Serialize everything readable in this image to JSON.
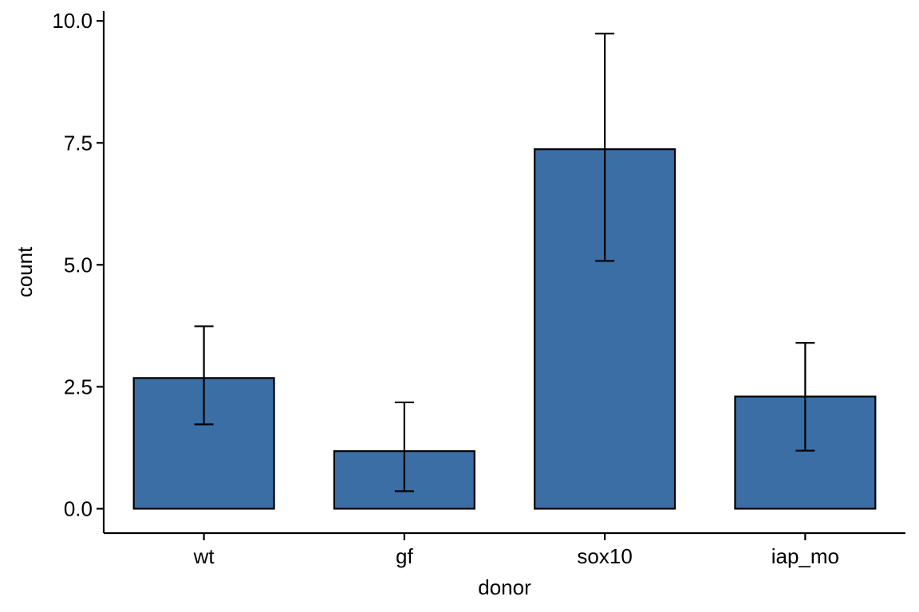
{
  "chart_data": {
    "type": "bar",
    "categories": [
      "wt",
      "gf",
      "sox10",
      "iap_mo"
    ],
    "values": [
      2.68,
      1.18,
      7.37,
      2.3
    ],
    "error_low": [
      1.73,
      0.36,
      5.08,
      1.19
    ],
    "error_high": [
      3.74,
      2.18,
      9.74,
      3.4
    ],
    "xlabel": "donor",
    "ylabel": "count",
    "ylim": [
      -0.5,
      10.2
    ],
    "yticks": [
      0.0,
      2.5,
      5.0,
      7.5,
      10.0
    ],
    "ytick_labels": [
      "0.0",
      "2.5",
      "5.0",
      "7.5",
      "10.0"
    ],
    "grid": false,
    "bar_color": "#3a6ea5",
    "bar_outline": "#000000"
  }
}
